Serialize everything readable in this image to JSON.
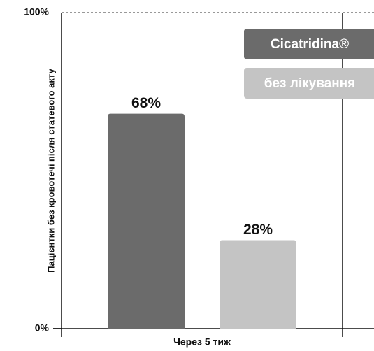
{
  "chart_data": {
    "type": "bar",
    "y_label": "Пацієнтки без кровотечі після статевого акту",
    "categories": [
      "Через 5 тиж"
    ],
    "series": [
      {
        "name": "Cicatridina®",
        "color": "#6b6b6b",
        "values": [
          68
        ],
        "value_labels": [
          "68%"
        ]
      },
      {
        "name": "без лікування",
        "color": "#c4c4c4",
        "values": [
          28
        ],
        "value_labels": [
          "28%"
        ]
      }
    ],
    "ylim": [
      0,
      100
    ],
    "yticks": [
      {
        "value": 0,
        "label": "0%"
      },
      {
        "value": 100,
        "label": "100%"
      }
    ],
    "legend": "top-right"
  }
}
